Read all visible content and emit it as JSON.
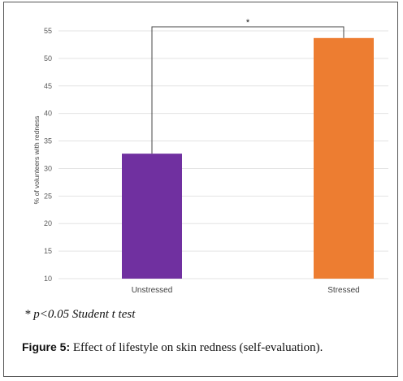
{
  "chart_data": {
    "type": "bar",
    "categories": [
      "Unstressed",
      "Stressed"
    ],
    "values": [
      32.7,
      53.7
    ],
    "colors": [
      "#7030a0",
      "#ed7d31"
    ],
    "ylabel": "% of volunteers with redness",
    "xlabel": "",
    "ylim": [
      10,
      55
    ],
    "yticks": [
      10,
      15,
      20,
      25,
      30,
      35,
      40,
      45,
      50,
      55
    ],
    "grid": true,
    "significance": {
      "label": "*",
      "between": [
        "Unstressed",
        "Stressed"
      ]
    }
  },
  "footnote": "* p<0.05 Student t test",
  "caption": {
    "label": "Figure 5:",
    "text": " Effect of lifestyle on skin redness (self-evaluation)."
  }
}
